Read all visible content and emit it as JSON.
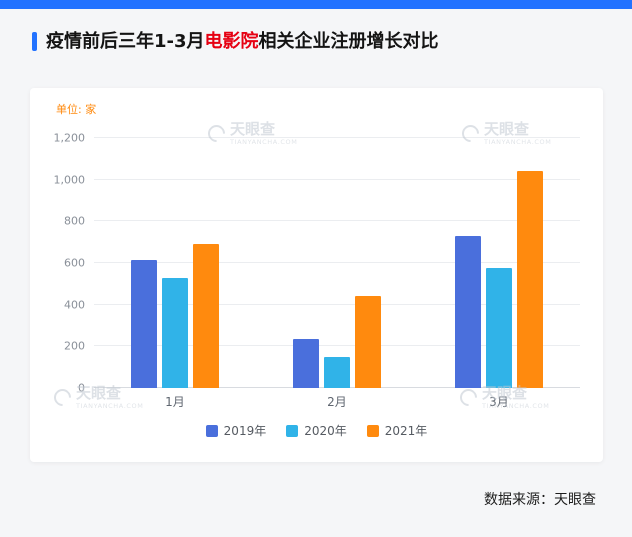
{
  "page": {
    "top_bar_color": "#2272ff",
    "background_color": "#f5f6f8"
  },
  "header": {
    "title_prefix": "疫情前后三年1-3月",
    "title_highlight": "电影院",
    "title_suffix": "相关企业注册增长对比",
    "highlight_color": "#e60012",
    "accent_color": "#2272ff"
  },
  "chart_data": {
    "type": "bar",
    "title": "疫情前后三年1-3月电影院相关企业注册增长对比",
    "unit_label": "单位: 家",
    "unit_label_color": "#ff8a0e",
    "categories": [
      "1月",
      "2月",
      "3月"
    ],
    "series": [
      {
        "name": "2019年",
        "color": "#4a6fdc",
        "values": [
          615,
          235,
          730
        ]
      },
      {
        "name": "2020年",
        "color": "#30b3e8",
        "values": [
          530,
          150,
          575
        ]
      },
      {
        "name": "2021年",
        "color": "#ff8a0e",
        "values": [
          690,
          440,
          1040
        ]
      }
    ],
    "ylim": [
      0,
      1200
    ],
    "yticks": [
      {
        "value": 0,
        "label": "0"
      },
      {
        "value": 200,
        "label": "200"
      },
      {
        "value": 400,
        "label": "400"
      },
      {
        "value": 600,
        "label": "600"
      },
      {
        "value": 800,
        "label": "800"
      },
      {
        "value": 1000,
        "label": "1,000"
      },
      {
        "value": 1200,
        "label": "1,200"
      }
    ],
    "grid": true,
    "legend_position": "bottom"
  },
  "watermark": {
    "brand": "天眼查",
    "domain": "TIANYANCHA.COM"
  },
  "footer": {
    "source": "数据来源：天眼查"
  }
}
